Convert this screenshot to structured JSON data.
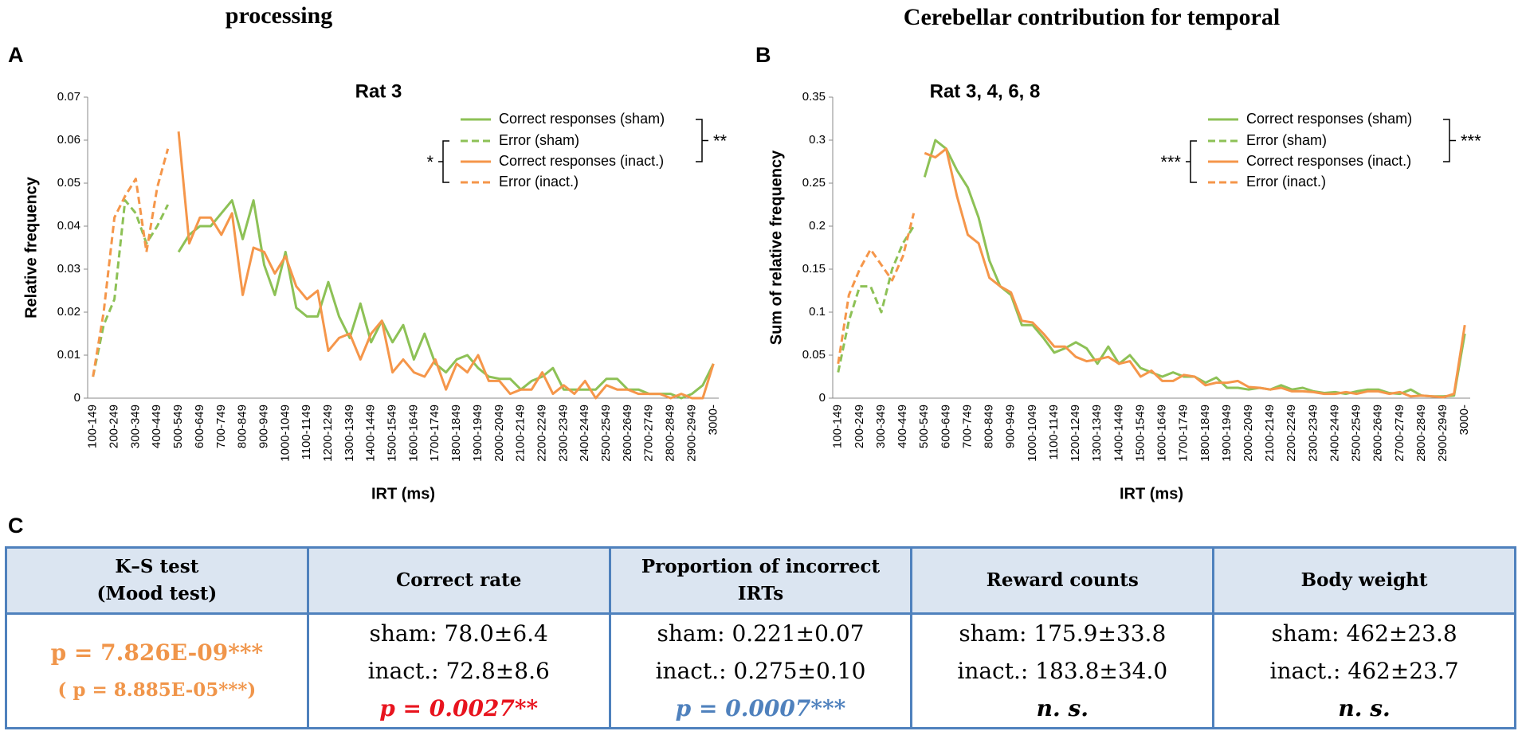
{
  "header": {
    "left": "processing",
    "right": "Cerebellar contribution for temporal"
  },
  "chart_data": [
    {
      "panel": "A",
      "type": "line",
      "title": "Rat 3",
      "x_label": "IRT (ms)",
      "y_label": "Relative frequency",
      "ylim": [
        0,
        0.07
      ],
      "yticks": [
        0,
        0.01,
        0.02,
        0.03,
        0.04,
        0.05,
        0.06,
        0.07
      ],
      "significance": [
        "*",
        "**"
      ],
      "categories": [
        "100-149",
        null,
        "200-249",
        null,
        "300-349",
        null,
        "400-449",
        null,
        "500-549",
        null,
        "600-649",
        null,
        "700-749",
        null,
        "800-849",
        null,
        "900-949",
        null,
        "1000-1049",
        null,
        "1100-1149",
        null,
        "1200-1249",
        null,
        "1300-1349",
        null,
        "1400-1449",
        null,
        "1500-1549",
        null,
        "1600-1649",
        null,
        "1700-1749",
        null,
        "1800-1849",
        null,
        "1900-1949",
        null,
        "2000-2049",
        null,
        "2100-2149",
        null,
        "2200-2249",
        null,
        "2300-2349",
        null,
        "2400-2449",
        null,
        "2500-2549",
        null,
        "2600-2649",
        null,
        "2700-2749",
        null,
        "2800-2849",
        null,
        "2900-2949",
        null,
        "3000-"
      ],
      "series": [
        {
          "name": "Correct responses (sham)",
          "color": "#8dc156",
          "linestyle": "solid",
          "values": [
            null,
            null,
            null,
            null,
            null,
            null,
            null,
            null,
            0.034,
            0.038,
            0.04,
            0.04,
            0.043,
            0.046,
            0.037,
            0.046,
            0.031,
            0.024,
            0.034,
            0.021,
            0.019,
            0.019,
            0.027,
            0.019,
            0.014,
            0.022,
            0.013,
            0.018,
            0.013,
            0.017,
            0.009,
            0.015,
            0.008,
            0.006,
            0.009,
            0.01,
            0.007,
            0.005,
            0.0045,
            0.0045,
            0.002,
            0.004,
            0.005,
            0.007,
            0.002,
            0.002,
            0.002,
            0.002,
            0.0045,
            0.0045,
            0.002,
            0.002,
            0.001,
            0.001,
            0.001,
            0,
            0.001,
            0.003,
            0.008
          ]
        },
        {
          "name": "Error (sham)",
          "color": "#8dc156",
          "linestyle": "dashed",
          "values": [
            0.005,
            0.017,
            0.023,
            0.046,
            0.043,
            0.036,
            0.04,
            0.045,
            null,
            null,
            null,
            null,
            null,
            null,
            null,
            null,
            null,
            null,
            null,
            null,
            null,
            null,
            null,
            null,
            null,
            null,
            null,
            null,
            null,
            null,
            null,
            null,
            null,
            null,
            null,
            null,
            null,
            null,
            null,
            null,
            null,
            null,
            null,
            null,
            null,
            null,
            null,
            null,
            null,
            null,
            null,
            null,
            null,
            null,
            null,
            null,
            null,
            null,
            null
          ]
        },
        {
          "name": "Correct responses (inact.)",
          "color": "#f5964a",
          "linestyle": "solid",
          "values": [
            null,
            null,
            null,
            null,
            null,
            null,
            null,
            null,
            0.062,
            0.036,
            0.042,
            0.042,
            0.038,
            0.043,
            0.024,
            0.035,
            0.034,
            0.029,
            0.033,
            0.026,
            0.023,
            0.025,
            0.011,
            0.014,
            0.015,
            0.009,
            0.015,
            0.018,
            0.006,
            0.009,
            0.006,
            0.005,
            0.009,
            0.002,
            0.008,
            0.006,
            0.01,
            0.004,
            0.004,
            0.001,
            0.002,
            0.002,
            0.006,
            0.001,
            0.003,
            0.001,
            0.004,
            0,
            0.003,
            0.002,
            0.002,
            0.001,
            0.001,
            0.001,
            0,
            0.001,
            0,
            0,
            0.008
          ]
        },
        {
          "name": "Error (inact.)",
          "color": "#f5964a",
          "linestyle": "dashed",
          "values": [
            0.005,
            0.02,
            0.042,
            0.047,
            0.051,
            0.034,
            0.049,
            0.058,
            null,
            null,
            null,
            null,
            null,
            null,
            null,
            null,
            null,
            null,
            null,
            null,
            null,
            null,
            null,
            null,
            null,
            null,
            null,
            null,
            null,
            null,
            null,
            null,
            null,
            null,
            null,
            null,
            null,
            null,
            null,
            null,
            null,
            null,
            null,
            null,
            null,
            null,
            null,
            null,
            null,
            null,
            null,
            null,
            null,
            null,
            null,
            null,
            null,
            null,
            null
          ]
        }
      ]
    },
    {
      "panel": "B",
      "type": "line",
      "title": "Rat 3, 4, 6, 8",
      "x_label": "IRT (ms)",
      "y_label": "Sum of relative frequency",
      "ylim": [
        0,
        0.35
      ],
      "yticks": [
        0,
        0.05,
        0.1,
        0.15,
        0.2,
        0.25,
        0.3,
        0.35
      ],
      "significance": [
        "***",
        "***"
      ],
      "categories": [
        "100-149",
        null,
        "200-249",
        null,
        "300-349",
        null,
        "400-449",
        null,
        "500-549",
        null,
        "600-649",
        null,
        "700-749",
        null,
        "800-849",
        null,
        "900-949",
        null,
        "1000-1049",
        null,
        "1100-1149",
        null,
        "1200-1249",
        null,
        "1300-1349",
        null,
        "1400-1449",
        null,
        "1500-1549",
        null,
        "1600-1649",
        null,
        "1700-1749",
        null,
        "1800-1849",
        null,
        "1900-1949",
        null,
        "2000-2049",
        null,
        "2100-2149",
        null,
        "2200-2249",
        null,
        "2300-2349",
        null,
        "2400-2449",
        null,
        "2500-2549",
        null,
        "2600-2649",
        null,
        "2700-2749",
        null,
        "2800-2849",
        null,
        "2900-2949",
        null,
        "3000-"
      ],
      "series": [
        {
          "name": "Correct responses (sham)",
          "color": "#8dc156",
          "linestyle": "solid",
          "values": [
            null,
            null,
            null,
            null,
            null,
            null,
            null,
            null,
            0.257,
            0.3,
            0.29,
            0.265,
            0.245,
            0.21,
            0.16,
            0.13,
            0.12,
            0.085,
            0.085,
            0.07,
            0.053,
            0.058,
            0.065,
            0.058,
            0.04,
            0.06,
            0.04,
            0.05,
            0.035,
            0.03,
            0.025,
            0.03,
            0.025,
            0.025,
            0.018,
            0.024,
            0.012,
            0.012,
            0.01,
            0.012,
            0.01,
            0.015,
            0.01,
            0.012,
            0.008,
            0.006,
            0.007,
            0.005,
            0.008,
            0.01,
            0.01,
            0.006,
            0.005,
            0.01,
            0.003,
            0.002,
            0.002,
            0.003,
            0.075
          ]
        },
        {
          "name": "Error (sham)",
          "color": "#8dc156",
          "linestyle": "dashed",
          "values": [
            0.03,
            0.09,
            0.13,
            0.13,
            0.1,
            0.15,
            0.18,
            0.2,
            null,
            null,
            null,
            null,
            null,
            null,
            null,
            null,
            null,
            null,
            null,
            null,
            null,
            null,
            null,
            null,
            null,
            null,
            null,
            null,
            null,
            null,
            null,
            null,
            null,
            null,
            null,
            null,
            null,
            null,
            null,
            null,
            null,
            null,
            null,
            null,
            null,
            null,
            null,
            null,
            null,
            null,
            null,
            null,
            null,
            null,
            null,
            null,
            null,
            null,
            null
          ]
        },
        {
          "name": "Correct responses (inact.)",
          "color": "#f5964a",
          "linestyle": "solid",
          "values": [
            null,
            null,
            null,
            null,
            null,
            null,
            null,
            null,
            0.285,
            0.28,
            0.29,
            0.235,
            0.19,
            0.18,
            0.14,
            0.13,
            0.123,
            0.09,
            0.088,
            0.075,
            0.06,
            0.06,
            0.048,
            0.043,
            0.045,
            0.048,
            0.04,
            0.043,
            0.025,
            0.032,
            0.02,
            0.02,
            0.027,
            0.025,
            0.015,
            0.018,
            0.018,
            0.02,
            0.013,
            0.012,
            0.01,
            0.012,
            0.008,
            0.008,
            0.007,
            0.005,
            0.005,
            0.007,
            0.005,
            0.008,
            0.008,
            0.005,
            0.007,
            0.002,
            0.003,
            0.002,
            0.001,
            0.005,
            0.085
          ]
        },
        {
          "name": "Error (inact.)",
          "color": "#f5964a",
          "linestyle": "dashed",
          "values": [
            0.04,
            0.12,
            0.15,
            0.173,
            0.155,
            0.137,
            0.165,
            0.215,
            null,
            null,
            null,
            null,
            null,
            null,
            null,
            null,
            null,
            null,
            null,
            null,
            null,
            null,
            null,
            null,
            null,
            null,
            null,
            null,
            null,
            null,
            null,
            null,
            null,
            null,
            null,
            null,
            null,
            null,
            null,
            null,
            null,
            null,
            null,
            null,
            null,
            null,
            null,
            null,
            null,
            null,
            null,
            null,
            null,
            null,
            null,
            null,
            null,
            null,
            null
          ]
        }
      ]
    }
  ],
  "table": {
    "panel": "C",
    "header": [
      [
        "K–S test",
        "(Mood test)"
      ],
      [
        "Correct rate"
      ],
      [
        "Proportion of incorrect",
        "IRTs"
      ],
      [
        "Reward counts"
      ],
      [
        "Body weight"
      ]
    ],
    "rows": [
      [
        [
          "p = 7.826E-09***",
          "( p = 8.885E-05***)"
        ],
        [
          "sham: 78.0±6.4",
          "inact.: 72.8±8.6",
          "p =  0.0027**"
        ],
        [
          "sham: 0.221±0.07",
          "inact.: 0.275±0.10",
          "p =  0.0007***"
        ],
        [
          "sham: 175.9±33.8",
          "inact.: 183.8±34.0",
          "n. s."
        ],
        [
          "sham: 462±23.8",
          "inact.: 462±23.7",
          "n. s."
        ]
      ]
    ]
  }
}
